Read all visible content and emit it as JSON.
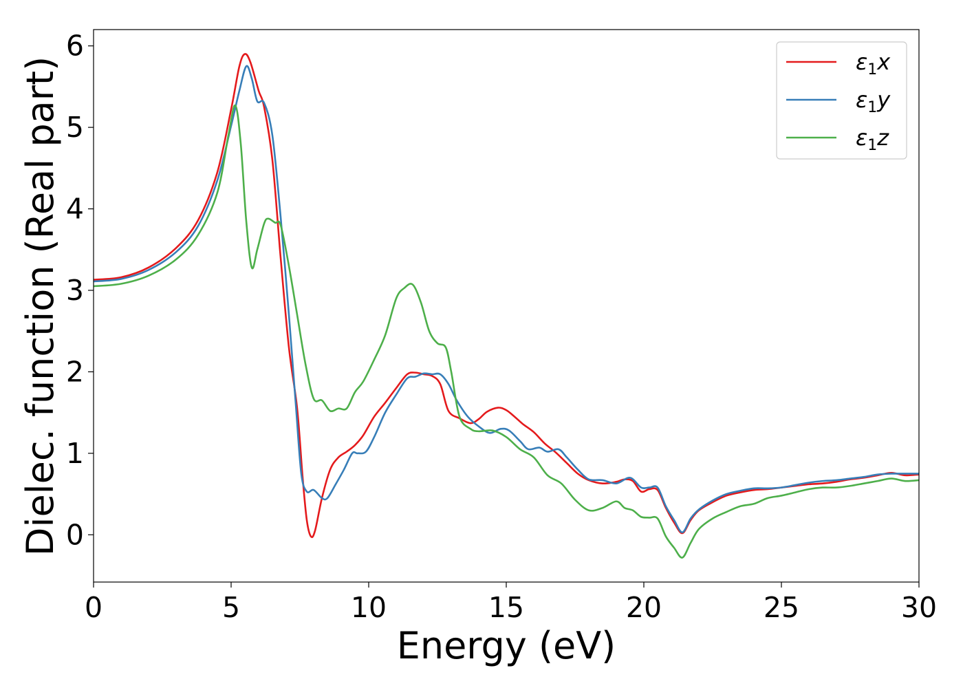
{
  "chart_data": {
    "type": "line",
    "title": "",
    "xlabel": "Energy (eV)",
    "ylabel": "Dielec. function (Real part)",
    "xlim": [
      0,
      30
    ],
    "ylim": [
      -0.58,
      6.2
    ],
    "xticks": [
      0,
      5,
      10,
      15,
      20,
      25,
      30
    ],
    "yticks": [
      0,
      1,
      2,
      3,
      4,
      5,
      6
    ],
    "xtick_labels": [
      "0",
      "5",
      "10",
      "15",
      "20",
      "25",
      "30"
    ],
    "ytick_labels": [
      "0",
      "1",
      "2",
      "3",
      "4",
      "5",
      "6"
    ],
    "grid": false,
    "legend_position": "top-right",
    "series": [
      {
        "name": "ε₁x",
        "legend_base": "ε",
        "legend_sub": "1",
        "legend_var": "x",
        "color": "#e41a1c",
        "points": [
          [
            0,
            3.13
          ],
          [
            1,
            3.16
          ],
          [
            2,
            3.28
          ],
          [
            3,
            3.52
          ],
          [
            3.8,
            3.86
          ],
          [
            4.5,
            4.45
          ],
          [
            5,
            5.22
          ],
          [
            5.3,
            5.75
          ],
          [
            5.5,
            5.9
          ],
          [
            5.7,
            5.8
          ],
          [
            6,
            5.45
          ],
          [
            6.2,
            5.25
          ],
          [
            6.5,
            4.6
          ],
          [
            6.8,
            3.4
          ],
          [
            7.1,
            2.3
          ],
          [
            7.4,
            1.55
          ],
          [
            7.6,
            0.7
          ],
          [
            7.75,
            0.18
          ],
          [
            7.9,
            -0.02
          ],
          [
            8.05,
            0.05
          ],
          [
            8.3,
            0.45
          ],
          [
            8.6,
            0.8
          ],
          [
            8.9,
            0.95
          ],
          [
            9.2,
            1.02
          ],
          [
            9.5,
            1.1
          ],
          [
            9.8,
            1.22
          ],
          [
            10.2,
            1.45
          ],
          [
            10.6,
            1.62
          ],
          [
            11,
            1.8
          ],
          [
            11.4,
            1.97
          ],
          [
            11.7,
            1.99
          ],
          [
            12,
            1.97
          ],
          [
            12.3,
            1.95
          ],
          [
            12.6,
            1.85
          ],
          [
            12.9,
            1.52
          ],
          [
            13.3,
            1.43
          ],
          [
            13.7,
            1.37
          ],
          [
            14,
            1.42
          ],
          [
            14.3,
            1.51
          ],
          [
            14.7,
            1.56
          ],
          [
            15,
            1.53
          ],
          [
            15.3,
            1.45
          ],
          [
            15.6,
            1.36
          ],
          [
            16,
            1.26
          ],
          [
            16.4,
            1.12
          ],
          [
            16.8,
            1.01
          ],
          [
            17.2,
            0.88
          ],
          [
            17.6,
            0.75
          ],
          [
            18,
            0.67
          ],
          [
            18.5,
            0.63
          ],
          [
            19,
            0.65
          ],
          [
            19.3,
            0.68
          ],
          [
            19.6,
            0.66
          ],
          [
            19.9,
            0.53
          ],
          [
            20.2,
            0.56
          ],
          [
            20.5,
            0.55
          ],
          [
            20.8,
            0.33
          ],
          [
            21.1,
            0.15
          ],
          [
            21.4,
            0.02
          ],
          [
            21.7,
            0.18
          ],
          [
            22,
            0.3
          ],
          [
            22.5,
            0.4
          ],
          [
            23,
            0.48
          ],
          [
            23.5,
            0.52
          ],
          [
            24,
            0.55
          ],
          [
            24.5,
            0.56
          ],
          [
            25,
            0.58
          ],
          [
            25.5,
            0.6
          ],
          [
            26,
            0.62
          ],
          [
            26.5,
            0.63
          ],
          [
            27,
            0.65
          ],
          [
            27.5,
            0.68
          ],
          [
            28,
            0.7
          ],
          [
            28.5,
            0.73
          ],
          [
            29,
            0.76
          ],
          [
            29.5,
            0.73
          ],
          [
            30,
            0.74
          ]
        ]
      },
      {
        "name": "ε₁y",
        "legend_base": "ε",
        "legend_sub": "1",
        "legend_var": "y",
        "color": "#377eb8",
        "points": [
          [
            0,
            3.11
          ],
          [
            1,
            3.14
          ],
          [
            2,
            3.25
          ],
          [
            3,
            3.47
          ],
          [
            3.8,
            3.79
          ],
          [
            4.5,
            4.35
          ],
          [
            5,
            5.02
          ],
          [
            5.3,
            5.45
          ],
          [
            5.55,
            5.75
          ],
          [
            5.75,
            5.6
          ],
          [
            5.95,
            5.32
          ],
          [
            6.2,
            5.3
          ],
          [
            6.5,
            4.9
          ],
          [
            6.8,
            3.9
          ],
          [
            7.1,
            2.7
          ],
          [
            7.35,
            1.6
          ],
          [
            7.55,
            0.75
          ],
          [
            7.75,
            0.53
          ],
          [
            8,
            0.55
          ],
          [
            8.3,
            0.45
          ],
          [
            8.5,
            0.45
          ],
          [
            8.8,
            0.62
          ],
          [
            9.1,
            0.8
          ],
          [
            9.4,
            1.0
          ],
          [
            9.6,
            1.0
          ],
          [
            9.9,
            1.02
          ],
          [
            10.2,
            1.2
          ],
          [
            10.6,
            1.5
          ],
          [
            11,
            1.72
          ],
          [
            11.4,
            1.92
          ],
          [
            11.7,
            1.94
          ],
          [
            12,
            1.98
          ],
          [
            12.3,
            1.97
          ],
          [
            12.6,
            1.97
          ],
          [
            12.9,
            1.85
          ],
          [
            13.2,
            1.65
          ],
          [
            13.6,
            1.45
          ],
          [
            14,
            1.33
          ],
          [
            14.4,
            1.25
          ],
          [
            14.8,
            1.3
          ],
          [
            15.1,
            1.28
          ],
          [
            15.5,
            1.15
          ],
          [
            15.8,
            1.05
          ],
          [
            16.2,
            1.07
          ],
          [
            16.5,
            1.02
          ],
          [
            16.9,
            1.05
          ],
          [
            17.2,
            0.95
          ],
          [
            17.6,
            0.8
          ],
          [
            18,
            0.68
          ],
          [
            18.5,
            0.67
          ],
          [
            19,
            0.63
          ],
          [
            19.5,
            0.7
          ],
          [
            19.9,
            0.58
          ],
          [
            20.2,
            0.58
          ],
          [
            20.5,
            0.58
          ],
          [
            20.8,
            0.35
          ],
          [
            21.1,
            0.18
          ],
          [
            21.4,
            0.03
          ],
          [
            21.7,
            0.2
          ],
          [
            22,
            0.31
          ],
          [
            22.5,
            0.42
          ],
          [
            23,
            0.5
          ],
          [
            23.5,
            0.54
          ],
          [
            24,
            0.57
          ],
          [
            24.5,
            0.57
          ],
          [
            25,
            0.58
          ],
          [
            25.5,
            0.61
          ],
          [
            26,
            0.64
          ],
          [
            26.5,
            0.66
          ],
          [
            27,
            0.67
          ],
          [
            27.5,
            0.69
          ],
          [
            28,
            0.71
          ],
          [
            28.5,
            0.74
          ],
          [
            29,
            0.75
          ],
          [
            29.5,
            0.75
          ],
          [
            30,
            0.75
          ]
        ]
      },
      {
        "name": "ε₁z",
        "legend_base": "ε",
        "legend_sub": "1",
        "legend_var": "z",
        "color": "#4daf4a",
        "points": [
          [
            0,
            3.05
          ],
          [
            1,
            3.08
          ],
          [
            2,
            3.18
          ],
          [
            3,
            3.38
          ],
          [
            3.8,
            3.68
          ],
          [
            4.5,
            4.2
          ],
          [
            4.9,
            4.9
          ],
          [
            5.15,
            5.27
          ],
          [
            5.35,
            4.8
          ],
          [
            5.55,
            3.85
          ],
          [
            5.75,
            3.28
          ],
          [
            5.95,
            3.5
          ],
          [
            6.2,
            3.82
          ],
          [
            6.35,
            3.88
          ],
          [
            6.6,
            3.83
          ],
          [
            6.8,
            3.8
          ],
          [
            7.1,
            3.3
          ],
          [
            7.4,
            2.7
          ],
          [
            7.7,
            2.1
          ],
          [
            8,
            1.67
          ],
          [
            8.3,
            1.65
          ],
          [
            8.6,
            1.52
          ],
          [
            8.9,
            1.55
          ],
          [
            9.2,
            1.55
          ],
          [
            9.5,
            1.75
          ],
          [
            9.8,
            1.88
          ],
          [
            10.2,
            2.15
          ],
          [
            10.6,
            2.45
          ],
          [
            11,
            2.9
          ],
          [
            11.3,
            3.03
          ],
          [
            11.6,
            3.07
          ],
          [
            11.9,
            2.85
          ],
          [
            12.2,
            2.5
          ],
          [
            12.5,
            2.35
          ],
          [
            12.8,
            2.3
          ],
          [
            13,
            2.0
          ],
          [
            13.3,
            1.45
          ],
          [
            13.7,
            1.3
          ],
          [
            14,
            1.27
          ],
          [
            14.5,
            1.28
          ],
          [
            15,
            1.2
          ],
          [
            15.5,
            1.05
          ],
          [
            16,
            0.95
          ],
          [
            16.5,
            0.73
          ],
          [
            17,
            0.63
          ],
          [
            17.5,
            0.43
          ],
          [
            18,
            0.3
          ],
          [
            18.5,
            0.33
          ],
          [
            19,
            0.41
          ],
          [
            19.3,
            0.33
          ],
          [
            19.6,
            0.3
          ],
          [
            19.9,
            0.22
          ],
          [
            20.2,
            0.21
          ],
          [
            20.5,
            0.2
          ],
          [
            20.8,
            -0.02
          ],
          [
            21.1,
            -0.16
          ],
          [
            21.4,
            -0.28
          ],
          [
            21.7,
            -0.1
          ],
          [
            22,
            0.07
          ],
          [
            22.5,
            0.2
          ],
          [
            23,
            0.28
          ],
          [
            23.5,
            0.35
          ],
          [
            24,
            0.38
          ],
          [
            24.5,
            0.45
          ],
          [
            25,
            0.48
          ],
          [
            25.5,
            0.52
          ],
          [
            26,
            0.56
          ],
          [
            26.5,
            0.58
          ],
          [
            27,
            0.58
          ],
          [
            27.5,
            0.6
          ],
          [
            28,
            0.63
          ],
          [
            28.5,
            0.66
          ],
          [
            29,
            0.69
          ],
          [
            29.5,
            0.66
          ],
          [
            30,
            0.67
          ]
        ]
      }
    ]
  }
}
